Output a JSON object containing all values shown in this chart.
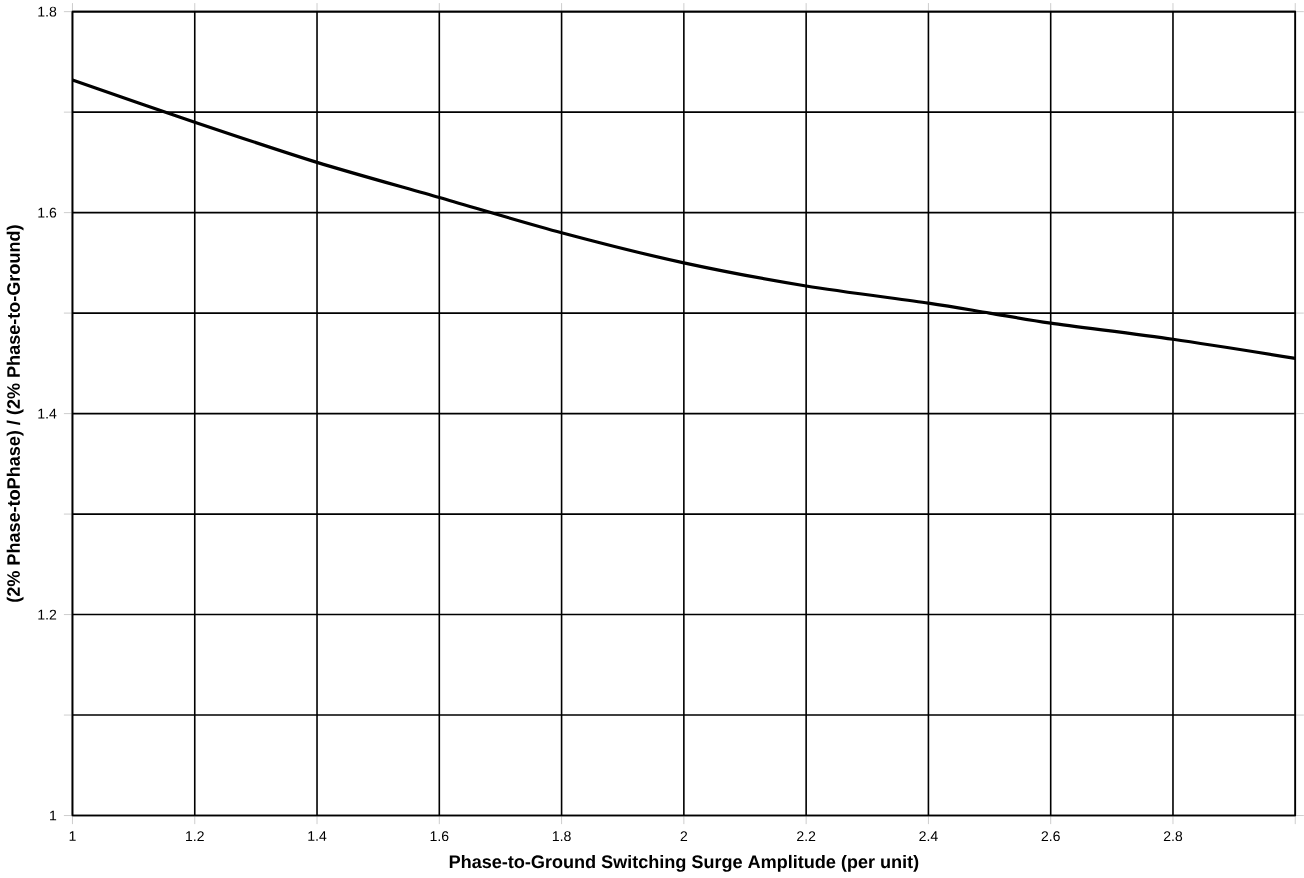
{
  "chart_data": {
    "type": "line",
    "xlabel": "Phase-to-Ground Switching Surge Amplitude (per unit)",
    "ylabel": "(2% Phase-toPhase) / (2% Phase-to-Ground)",
    "x": [
      1,
      1.2,
      1.4,
      1.6,
      1.8,
      2.0,
      2.2,
      2.4,
      2.5,
      2.6,
      2.8,
      3.0
    ],
    "series": [
      {
        "color": "#000000",
        "values": [
          1.732,
          1.69,
          1.65,
          1.615,
          1.58,
          1.55,
          1.527,
          1.51,
          1.5,
          1.49,
          1.474,
          1.455
        ]
      }
    ],
    "xlim": [
      1,
      3
    ],
    "ylim": [
      1,
      1.8
    ],
    "xticks": [
      1,
      1.2,
      1.4,
      1.6,
      1.8,
      2,
      2.2,
      2.4,
      2.6,
      2.8,
      {
        "value": 3,
        "label": null
      }
    ],
    "yticks": [
      1,
      {
        "value": 1.1,
        "label": null
      },
      1.2,
      {
        "value": 1.3,
        "label": null
      },
      1.4,
      {
        "value": 1.5,
        "label": null
      },
      1.6,
      {
        "value": 1.7,
        "label": null
      },
      1.8
    ],
    "grid": true,
    "marker": "none",
    "line_style": "solid"
  }
}
